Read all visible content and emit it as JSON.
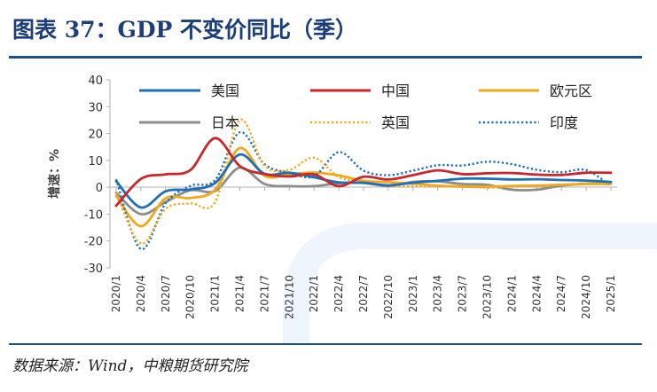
{
  "figure": {
    "title": "图表 37：GDP 不变价同比（季）",
    "source": "数据来源：Wind，中粮期货研究院"
  },
  "chart_data": {
    "type": "line",
    "ylabel": "增速：%",
    "ylim": [
      -30,
      40
    ],
    "yticks": [
      -30,
      -20,
      -10,
      0,
      10,
      20,
      30,
      40
    ],
    "x": [
      "2020/1",
      "2020/4",
      "2020/7",
      "2020/10",
      "2021/1",
      "2021/4",
      "2021/7",
      "2021/10",
      "2022/1",
      "2022/4",
      "2022/7",
      "2022/10",
      "2023/1",
      "2023/4",
      "2023/7",
      "2023/10",
      "2024/1",
      "2024/4",
      "2024/7",
      "2024/10",
      "2025/1"
    ],
    "legend": "top",
    "series": [
      {
        "name": "美国",
        "color": "#1f6fb7",
        "style": "solid",
        "values": [
          2.3,
          -7.5,
          -1.5,
          -0.8,
          1.6,
          12.2,
          5.0,
          5.4,
          3.7,
          1.8,
          1.7,
          0.7,
          1.7,
          2.4,
          3.2,
          3.2,
          2.9,
          3.0,
          2.7,
          2.5,
          2.0
        ]
      },
      {
        "name": "中国",
        "color": "#c6282b",
        "style": "solid",
        "values": [
          -6.9,
          3.1,
          4.8,
          6.4,
          18.3,
          7.9,
          4.9,
          4.0,
          4.8,
          0.4,
          3.9,
          2.9,
          4.5,
          6.3,
          4.9,
          5.2,
          5.3,
          4.7,
          4.6,
          5.4,
          5.4
        ]
      },
      {
        "name": "欧元区",
        "color": "#f2a81d",
        "style": "solid",
        "values": [
          -3.2,
          -14.5,
          -4.1,
          -4.0,
          -0.9,
          14.6,
          4.3,
          4.8,
          5.5,
          4.4,
          2.4,
          1.9,
          1.3,
          0.6,
          0.2,
          0.2,
          0.5,
          0.6,
          0.9,
          1.2,
          1.2
        ]
      },
      {
        "name": "日本",
        "color": "#8c8c8c",
        "style": "solid",
        "values": [
          -2.0,
          -10.0,
          -5.5,
          -1.1,
          -1.4,
          7.3,
          1.2,
          0.4,
          0.4,
          1.5,
          1.6,
          0.5,
          2.0,
          2.2,
          1.2,
          0.9,
          -0.9,
          -0.9,
          0.6,
          1.3,
          1.7
        ]
      },
      {
        "name": "英国",
        "color": "#f2a81d",
        "style": "dotted",
        "values": [
          -2.0,
          -21.0,
          -8.0,
          -6.0,
          -5.5,
          25.0,
          8.0,
          6.5,
          11.0,
          3.8,
          2.0,
          0.5,
          0.3,
          0.4,
          0.4,
          -0.2,
          0.3,
          0.7,
          1.0,
          1.5,
          1.3
        ]
      },
      {
        "name": "印度",
        "color": "#1f6fb7",
        "style": "dotted",
        "values": [
          3.0,
          -23.0,
          -6.0,
          0.5,
          2.7,
          20.5,
          8.6,
          5.4,
          4.1,
          13.1,
          6.2,
          4.5,
          6.2,
          8.2,
          8.1,
          9.5,
          8.6,
          6.5,
          5.6,
          6.4,
          0.5
        ]
      }
    ]
  }
}
